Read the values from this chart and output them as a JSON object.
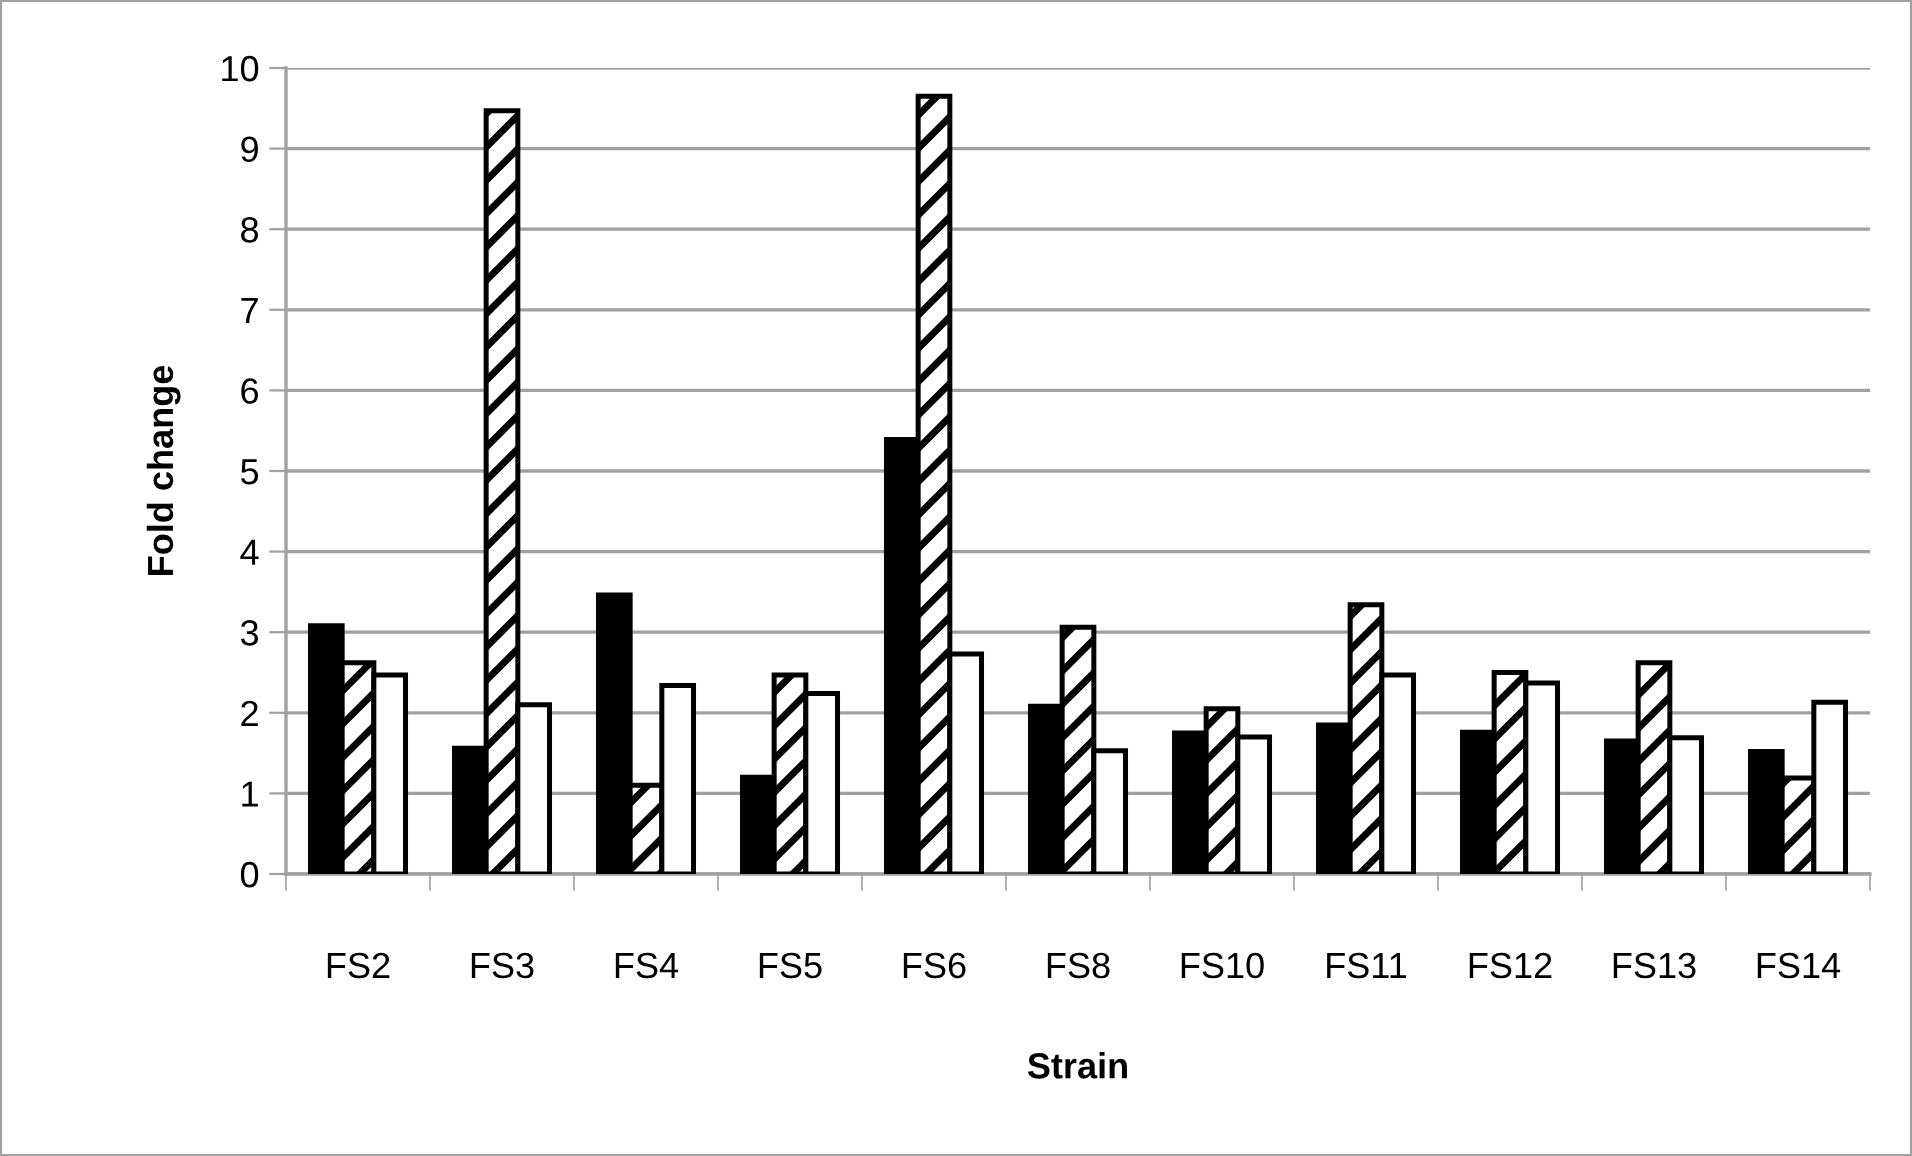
{
  "chart_data": {
    "type": "bar",
    "xlabel": "Strain",
    "ylabel": "Fold change",
    "categories": [
      "FS2",
      "FS3",
      "FS4",
      "FS5",
      "FS6",
      "FS8",
      "FS10",
      "FS11",
      "FS12",
      "FS13",
      "FS14"
    ],
    "series": [
      {
        "color": "#000000",
        "values": [
          3.08,
          1.56,
          3.46,
          1.2,
          5.39,
          2.08,
          1.75,
          1.85,
          1.76,
          1.65,
          1.52
        ]
      },
      {
        "color": "#000000",
        "values": [
          2.62,
          9.47,
          1.1,
          2.47,
          9.65,
          3.06,
          2.05,
          3.34,
          2.5,
          2.62,
          1.19
        ]
      },
      {
        "color": "#ffffff",
        "values": [
          2.47,
          2.1,
          2.34,
          2.24,
          2.73,
          1.53,
          1.7,
          2.47,
          2.37,
          1.69,
          2.13
        ]
      }
    ],
    "ylim": [
      0,
      10
    ],
    "yticks": [
      0,
      1,
      2,
      3,
      4,
      5,
      6,
      7,
      8,
      9,
      10
    ],
    "grid": "y"
  }
}
